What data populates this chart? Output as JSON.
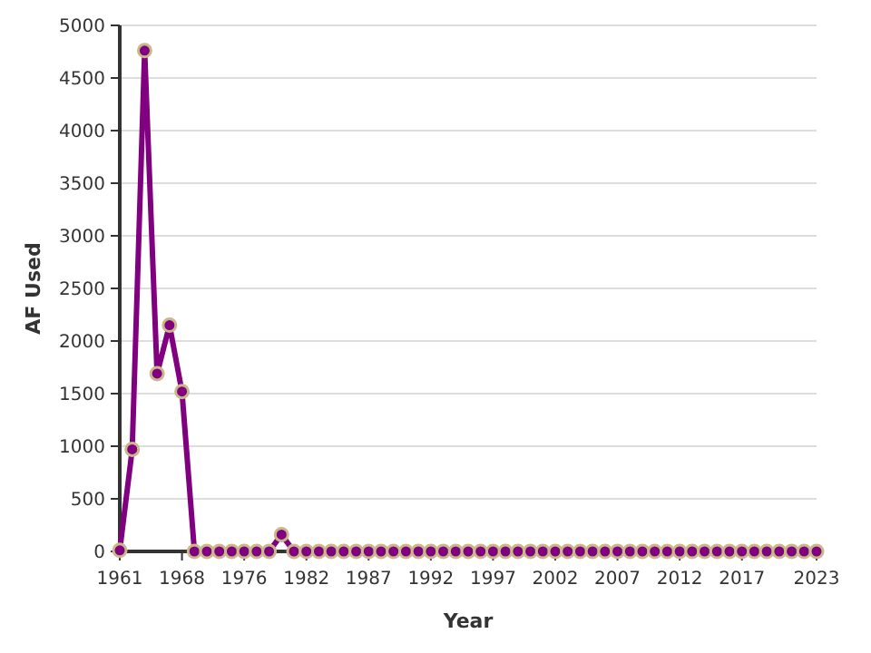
{
  "chart_data": {
    "type": "line",
    "xlabel": "Year",
    "ylabel": "AF Used",
    "categories": [
      "1961",
      null,
      null,
      null,
      null,
      "1968",
      null,
      null,
      null,
      null,
      "1976",
      null,
      null,
      null,
      null,
      "1982",
      null,
      null,
      null,
      null,
      "1987",
      null,
      null,
      null,
      null,
      "1992",
      null,
      null,
      null,
      null,
      "1997",
      null,
      null,
      null,
      null,
      "2002",
      null,
      null,
      null,
      null,
      "2007",
      null,
      null,
      null,
      null,
      "2012",
      null,
      null,
      null,
      null,
      "2017",
      null,
      null,
      null,
      null,
      null,
      "2023"
    ],
    "series": [
      {
        "color": "#800080",
        "values": [
          10,
          970,
          4760,
          1690,
          2150,
          1520,
          0,
          0,
          0,
          0,
          0,
          0,
          0,
          160,
          0,
          0,
          0,
          0,
          0,
          0,
          0,
          0,
          0,
          0,
          0,
          0,
          0,
          0,
          0,
          0,
          0,
          0,
          0,
          0,
          0,
          0,
          0,
          0,
          0,
          0,
          0,
          0,
          0,
          0,
          0,
          0,
          0,
          0,
          0,
          0,
          0,
          0,
          0,
          0,
          0,
          0,
          0
        ]
      }
    ],
    "ylim": [
      0,
      5000
    ],
    "yticks": [
      0,
      500,
      1000,
      1500,
      2000,
      2500,
      3000,
      3500,
      4000,
      4500,
      5000
    ],
    "grid": "y",
    "marker": "circle",
    "line_style": "solid"
  }
}
